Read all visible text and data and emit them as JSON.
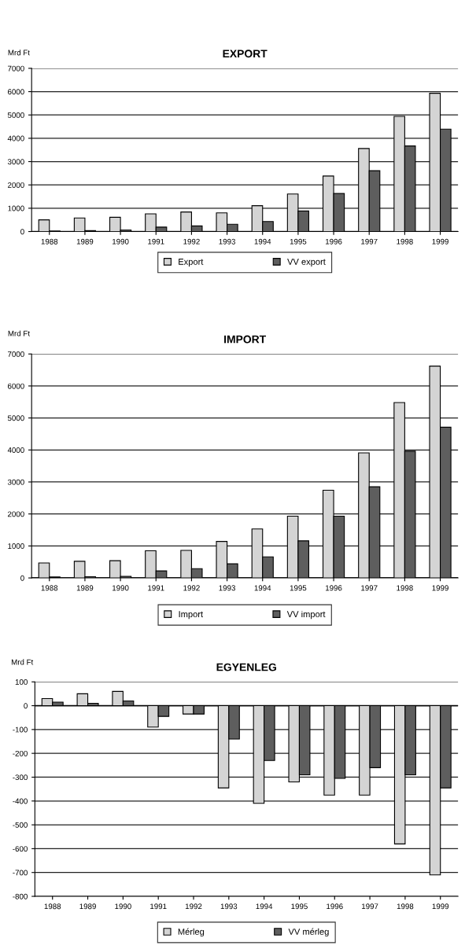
{
  "chart_data": [
    {
      "type": "bar",
      "title": "EXPORT",
      "ylabel": "Mrd Ft",
      "categories": [
        "1988",
        "1989",
        "1990",
        "1991",
        "1992",
        "1993",
        "1994",
        "1995",
        "1996",
        "1997",
        "1998",
        "1999"
      ],
      "series": [
        {
          "name": "Export",
          "color": "#d4d4d4",
          "values": [
            500,
            580,
            610,
            760,
            840,
            800,
            1110,
            1610,
            2380,
            3560,
            4940,
            5930
          ]
        },
        {
          "name": "VV export",
          "color": "#5e5e5e",
          "values": [
            20,
            40,
            70,
            190,
            240,
            310,
            430,
            880,
            1630,
            2610,
            3670,
            4390
          ]
        }
      ],
      "ylim": [
        0,
        7000
      ],
      "yticks": [
        0,
        1000,
        2000,
        3000,
        4000,
        5000,
        6000,
        7000
      ],
      "grid": "y",
      "legend": "bottom"
    },
    {
      "type": "bar",
      "title": "IMPORT",
      "ylabel": "Mrd Ft",
      "categories": [
        "1988",
        "1989",
        "1990",
        "1991",
        "1992",
        "1993",
        "1994",
        "1995",
        "1996",
        "1997",
        "1998",
        "1999"
      ],
      "series": [
        {
          "name": "Import",
          "color": "#d4d4d4",
          "values": [
            470,
            520,
            540,
            850,
            860,
            1140,
            1530,
            1930,
            2740,
            3910,
            5480,
            6620
          ]
        },
        {
          "name": "VV import",
          "color": "#5e5e5e",
          "values": [
            30,
            40,
            50,
            220,
            290,
            440,
            660,
            1160,
            1930,
            2850,
            3960,
            4710
          ]
        }
      ],
      "ylim": [
        0,
        7000
      ],
      "yticks": [
        0,
        1000,
        2000,
        3000,
        4000,
        5000,
        6000,
        7000
      ],
      "grid": "y",
      "legend": "bottom"
    },
    {
      "type": "bar",
      "title": "EGYENLEG",
      "ylabel": "Mrd Ft",
      "categories": [
        "1988",
        "1989",
        "1990",
        "1991",
        "1992",
        "1993",
        "1994",
        "1995",
        "1996",
        "1997",
        "1998",
        "1999"
      ],
      "series": [
        {
          "name": "Mérleg",
          "color": "#d4d4d4",
          "values": [
            30,
            50,
            60,
            -90,
            -35,
            -345,
            -410,
            -320,
            -375,
            -375,
            -580,
            -710
          ]
        },
        {
          "name": "VV mérleg",
          "color": "#5e5e5e",
          "values": [
            15,
            10,
            20,
            -45,
            -35,
            -140,
            -230,
            -290,
            -305,
            -260,
            -290,
            -345
          ]
        }
      ],
      "ylim": [
        -800,
        100
      ],
      "yticks": [
        -800,
        -700,
        -600,
        -500,
        -400,
        -300,
        -200,
        -100,
        0,
        100
      ],
      "grid": "y",
      "legend": "bottom"
    }
  ]
}
